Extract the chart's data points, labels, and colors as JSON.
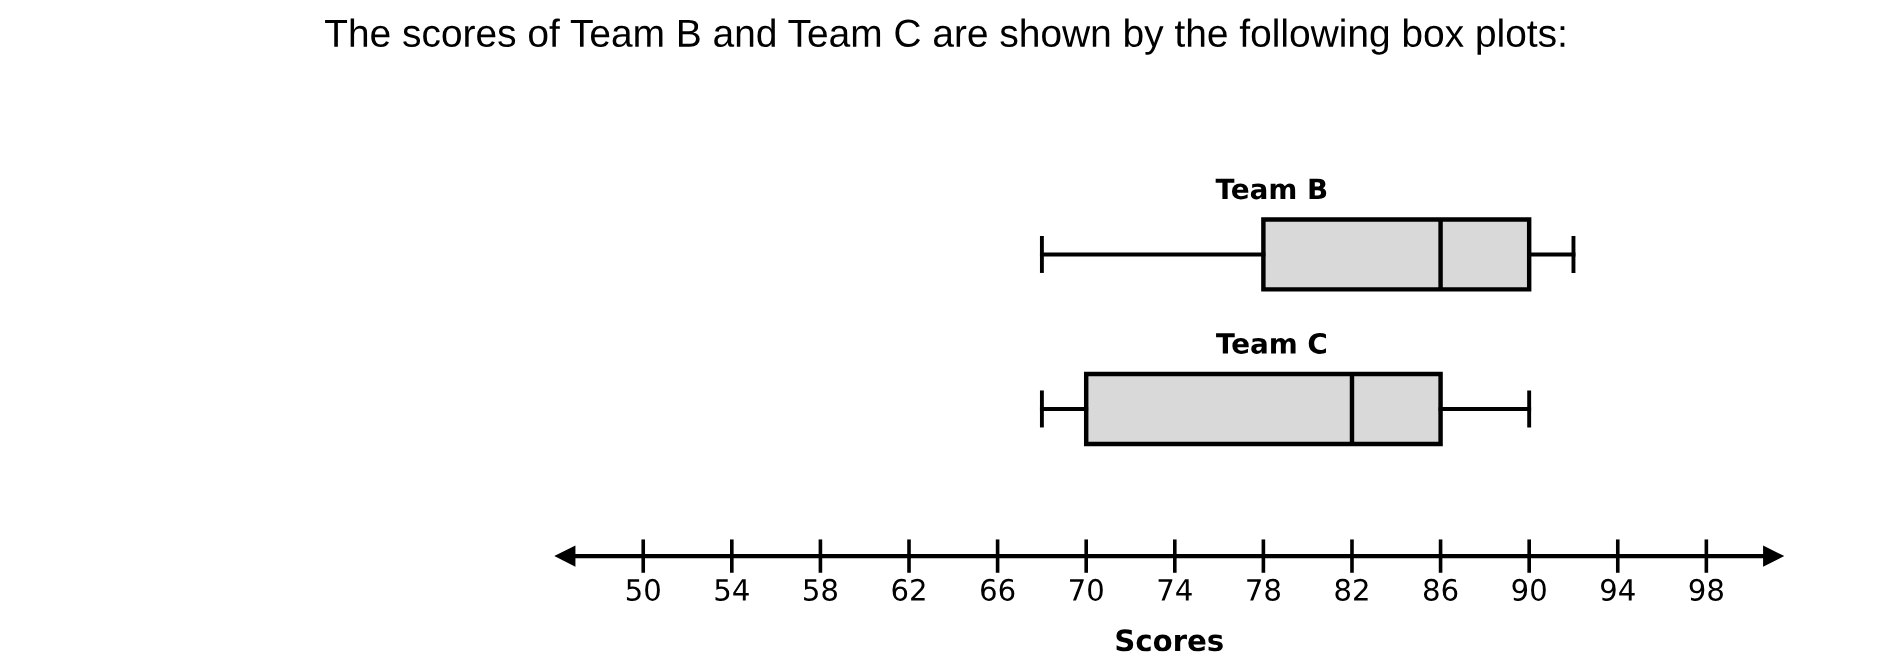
{
  "chart_data": {
    "type": "box",
    "orientation": "horizontal",
    "title": "The scores of Team B and Team C are shown by the following box plots:",
    "xlabel": "Scores",
    "categories": [
      "Team B",
      "Team C"
    ],
    "boxes": [
      {
        "low": 68,
        "q1": 78,
        "median": 86,
        "q3": 90,
        "high": 92
      },
      {
        "low": 68,
        "q1": 70,
        "median": 82,
        "q3": 86,
        "high": 90
      }
    ],
    "color": "#d9d9d9",
    "xlim": [
      46.5,
      101
    ],
    "xticks": [
      50,
      54,
      58,
      62,
      66,
      70,
      74,
      78,
      82,
      86,
      90,
      94,
      98
    ],
    "grid": false,
    "legend": false
  }
}
